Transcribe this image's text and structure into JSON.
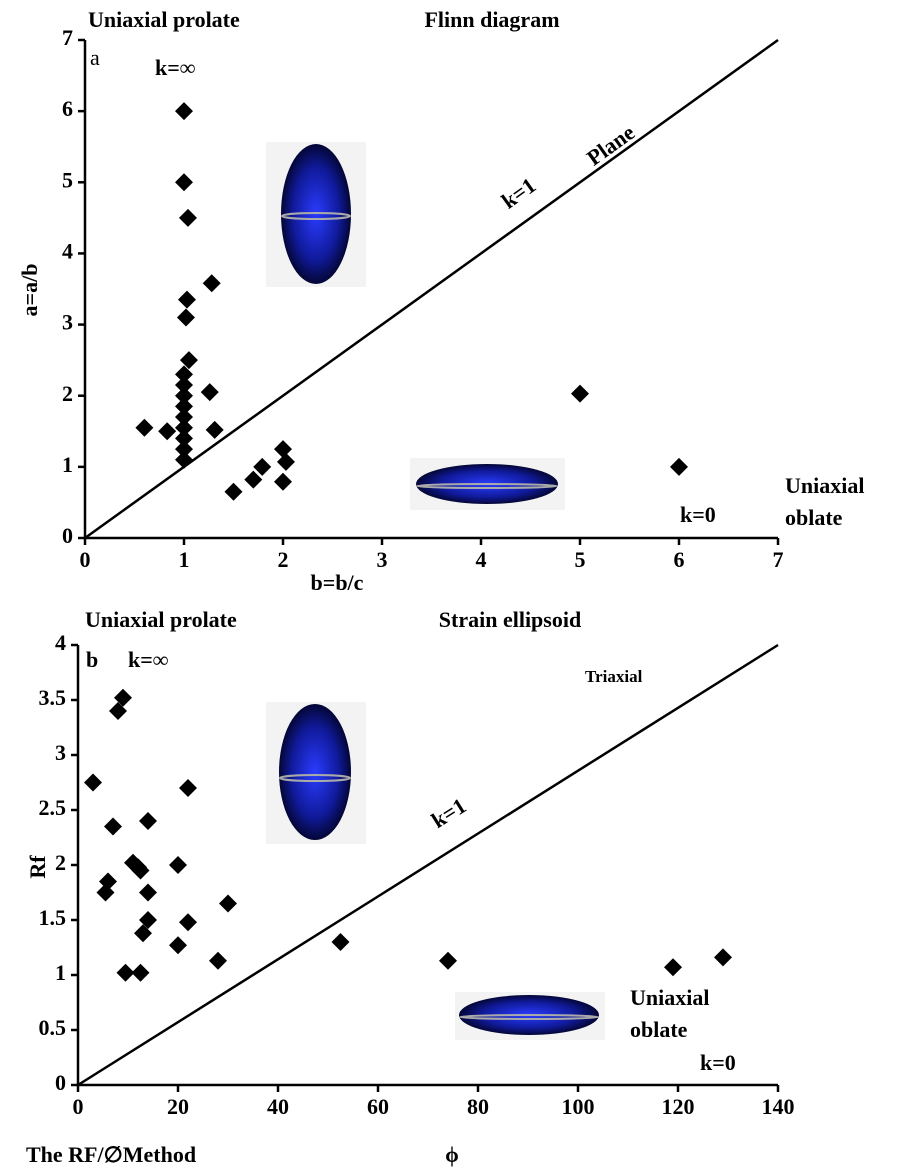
{
  "chart_data": [
    {
      "type": "scatter",
      "title": "Flinn diagram",
      "x_label": "b=b/c",
      "y_label": "a=a/b",
      "x": [
        1.0,
        1.0,
        1.04,
        1.28,
        1.03,
        1.02,
        1.05,
        1.0,
        1.0,
        1.0,
        1.0,
        1.0,
        1.0,
        1.0,
        1.0,
        1.0,
        1.26,
        0.6,
        0.83,
        1.31,
        1.5,
        1.7,
        1.79,
        2.0,
        2.0,
        2.03,
        5.0,
        6.0
      ],
      "values": [
        6.0,
        5.0,
        4.5,
        3.58,
        3.35,
        3.1,
        2.5,
        2.3,
        2.15,
        2.0,
        1.85,
        1.7,
        1.55,
        1.4,
        1.25,
        1.1,
        2.05,
        1.55,
        1.5,
        1.52,
        0.65,
        0.82,
        1.0,
        0.79,
        1.25,
        1.07,
        2.03,
        1.0
      ],
      "color": "#000000",
      "xlim": [
        0,
        7
      ],
      "ylim": [
        0,
        7
      ],
      "xticks": [
        0,
        1,
        2,
        3,
        4,
        5,
        6,
        7
      ],
      "yticks": [
        0,
        1,
        2,
        3,
        4,
        5,
        6,
        7
      ],
      "annotations": [
        "Uniaxial prolate",
        "a",
        "k=∞",
        "k=1",
        "Plane",
        "Uniaxial",
        "oblate",
        "k=0"
      ]
    },
    {
      "type": "scatter",
      "title": "Strain ellipsoid",
      "x_label": "ϕ",
      "y_label": "Rf",
      "x": [
        9,
        8,
        3,
        7,
        14,
        22,
        11,
        12,
        12.5,
        20,
        6,
        5.5,
        14,
        30,
        14,
        22,
        13,
        20,
        52.5,
        9.5,
        12.5,
        28,
        74,
        119,
        129
      ],
      "values": [
        3.52,
        3.4,
        2.75,
        2.35,
        2.4,
        2.7,
        2.02,
        1.98,
        1.95,
        2.0,
        1.85,
        1.75,
        1.75,
        1.65,
        1.5,
        1.48,
        1.38,
        1.27,
        1.3,
        1.02,
        1.02,
        1.13,
        1.13,
        1.07,
        1.16
      ],
      "color": "#000000",
      "xlim": [
        0,
        140
      ],
      "ylim": [
        0,
        4
      ],
      "xticks": [
        0,
        20,
        40,
        60,
        80,
        100,
        120,
        140
      ],
      "yticks": [
        0,
        0.5,
        1,
        1.5,
        2,
        2.5,
        3,
        3.5,
        4
      ],
      "annotations": [
        "Uniaxial prolate",
        "b",
        "k=∞",
        "Triaxial",
        "k=1",
        "Uniaxial",
        "oblate",
        "k=0",
        "The RF/∅Method"
      ]
    }
  ]
}
